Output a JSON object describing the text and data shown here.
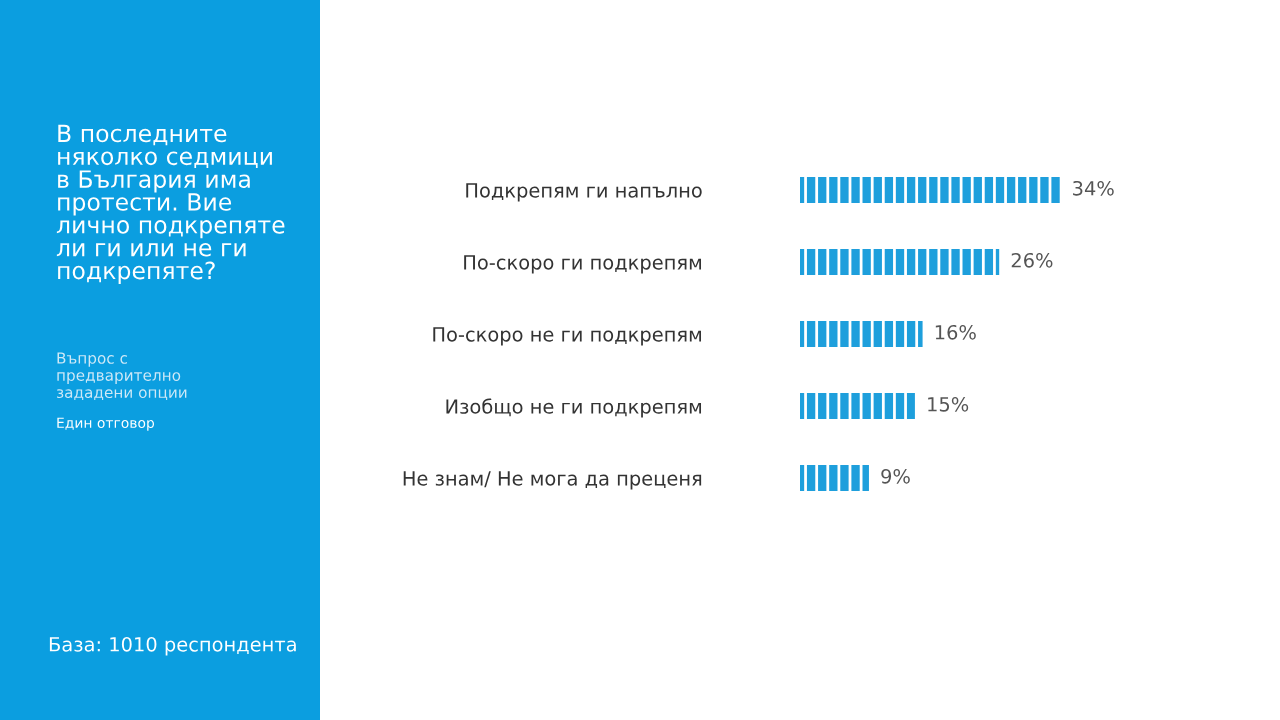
{
  "chart_data": {
    "type": "bar",
    "orientation": "horizontal",
    "title": "В последните няколко седмици в България има протести. Вие лично подкрепяте ли ги или не ги подкрепяте?",
    "subtitle": "Въпрос с предварително зададени опции",
    "annotations": [
      "Един отговор",
      "База: 1010 респондента"
    ],
    "categories": [
      "Подкрепям ги напълно",
      "По-скоро ги подкрепям",
      "По-скоро не ги подкрепям",
      "Изобщо не ги подкрепям",
      "Не знам/ Не мога да преценя"
    ],
    "values": [
      34,
      26,
      16,
      15,
      9
    ],
    "value_labels": [
      "34%",
      "26%",
      "16%",
      "15%",
      "9%"
    ],
    "color": "#1e9fdc",
    "grid": false,
    "legend": false
  }
}
